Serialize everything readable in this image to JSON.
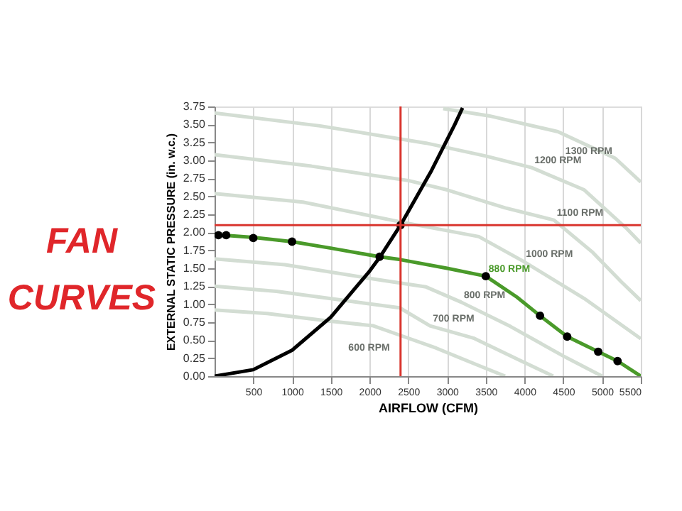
{
  "chart_data": {
    "type": "line",
    "title": "FAN CURVES",
    "xlabel": "AIRFLOW (CFM)",
    "ylabel": "EXTERNAL STATIC PRESSURE (in. w.c.)",
    "xlim": [
      0,
      5500
    ],
    "xticks": [
      500,
      1000,
      1500,
      2000,
      2500,
      3000,
      3500,
      4000,
      4500,
      5000,
      5500
    ],
    "ylim": [
      0,
      3.75
    ],
    "yticks": [
      {
        "value": 0,
        "label": "0.00"
      },
      0.25,
      {
        "value": 0.5,
        "label": "0.50"
      },
      0.75,
      {
        "value": 1,
        "label": "1.00"
      },
      1.25,
      {
        "value": 1.5,
        "label": "1.50"
      },
      1.75,
      {
        "value": 2,
        "label": "2.00"
      },
      2.25,
      {
        "value": 2.5,
        "label": "2.50"
      },
      2.75,
      {
        "value": 3,
        "label": "3.00"
      },
      3.25,
      {
        "value": 3.5,
        "label": "3.50"
      },
      3.75
    ],
    "grid": "x",
    "series": [
      {
        "name": "600 RPM",
        "color": "#d3ddd3",
        "x": [
          0,
          680,
          1450,
          2050,
          2390,
          2860,
          3380,
          3750
        ],
        "values": [
          0.92,
          0.87,
          0.77,
          0.7,
          0.57,
          0.39,
          0.16,
          0
        ]
      },
      {
        "name": "700 RPM",
        "color": "#d3ddd3",
        "x": [
          0,
          800,
          1690,
          2390,
          2780,
          3340,
          3940,
          4370
        ],
        "values": [
          1.25,
          1.18,
          1.05,
          0.95,
          0.7,
          0.53,
          0.22,
          0
        ]
      },
      {
        "name": "800 RPM",
        "color": "#d3ddd3",
        "x": [
          0,
          910,
          1940,
          2730,
          3180,
          3820,
          4500,
          5000
        ],
        "values": [
          1.63,
          1.55,
          1.37,
          1.24,
          1.03,
          0.69,
          0.28,
          0
        ]
      },
      {
        "name": "1000 RPM",
        "color": "#d3ddd3",
        "x": [
          0,
          1140,
          2420,
          3410,
          3980,
          4770,
          5500
        ],
        "values": [
          2.54,
          2.42,
          2.14,
          1.94,
          1.6,
          1.08,
          0.52
        ]
      },
      {
        "name": "1100 RPM",
        "color": "#d3ddd3",
        "x": [
          0,
          1250,
          2500,
          3000,
          3750,
          4380,
          4880,
          5250,
          5500
        ],
        "values": [
          3.08,
          2.92,
          2.72,
          2.59,
          2.34,
          2.17,
          1.72,
          1.31,
          1.05
        ]
      },
      {
        "name": "1200 RPM",
        "color": "#d3ddd3",
        "x": [
          0,
          1360,
          2730,
          3500,
          4090,
          4770,
          5320,
          5500
        ],
        "values": [
          3.66,
          3.48,
          3.24,
          3.06,
          2.9,
          2.59,
          2.05,
          1.85
        ]
      },
      {
        "name": "1300 RPM",
        "color": "#d3ddd3",
        "x": [
          2950,
          3540,
          4430,
          5170,
          5500
        ],
        "values": [
          3.72,
          3.62,
          3.4,
          3.03,
          2.7
        ]
      },
      {
        "name": "880 RPM",
        "color": "#4a9a2a",
        "x": [
          0,
          500,
          1000,
          1500,
          2130,
          2400,
          3000,
          3500,
          3900,
          4200,
          4550,
          4950,
          5200,
          5500
        ],
        "values": [
          1.97,
          1.93,
          1.87,
          1.78,
          1.66,
          1.62,
          1.5,
          1.39,
          1.1,
          0.84,
          0.55,
          0.34,
          0.21,
          0
        ]
      },
      {
        "color": "#000000",
        "x": [
          0,
          500,
          1000,
          1500,
          2000,
          2130,
          2400,
          2800,
          3100,
          3200
        ],
        "values": [
          0,
          0.09,
          0.36,
          0.82,
          1.46,
          1.65,
          2.1,
          2.86,
          3.5,
          3.73
        ]
      },
      {
        "type": "scatter",
        "marker": "circle",
        "color": "#000000",
        "x": [
          50,
          150,
          500,
          1000,
          2130,
          2400,
          3500,
          4200,
          4550,
          4950,
          5200
        ],
        "values": [
          1.96,
          1.96,
          1.92,
          1.87,
          1.66,
          2.1,
          1.39,
          0.84,
          0.55,
          0.34,
          0.21
        ]
      }
    ],
    "ref_lines": [
      {
        "axis": "x",
        "value": 2400,
        "color": "#d9352e"
      },
      {
        "axis": "y",
        "value": 2.1,
        "color": "#d9352e"
      }
    ]
  }
}
